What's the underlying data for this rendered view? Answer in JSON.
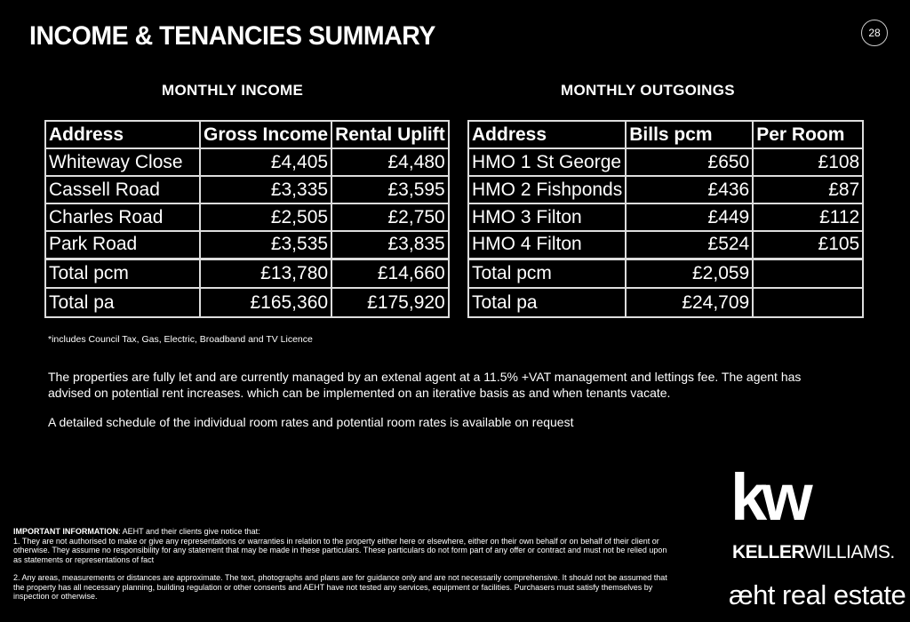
{
  "title": "INCOME & TENANCIES SUMMARY",
  "page_number": "28",
  "income": {
    "heading": "MONTHLY INCOME",
    "headers": [
      "Address",
      "Gross Income",
      "Rental Uplift"
    ],
    "rows": [
      [
        "Whiteway Close",
        "£4,405",
        "£4,480"
      ],
      [
        "Cassell Road",
        "£3,335",
        "£3,595"
      ],
      [
        "Charles Road",
        "£2,505",
        "£2,750"
      ],
      [
        "Park Road",
        "£3,535",
        "£3,835"
      ]
    ],
    "totals": [
      [
        "Total pcm",
        "£13,780",
        "£14,660"
      ],
      [
        "Total pa",
        "£165,360",
        "£175,920"
      ]
    ]
  },
  "outgoings": {
    "heading": "MONTHLY OUTGOINGS",
    "headers": [
      "Address",
      "Bills pcm",
      "Per Room"
    ],
    "rows": [
      [
        "HMO 1 St George",
        "£650",
        "£108"
      ],
      [
        "HMO 2 Fishponds",
        "£436",
        "£87"
      ],
      [
        "HMO 3 Filton",
        "£449",
        "£112"
      ],
      [
        "HMO 4 Filton",
        "£524",
        "£105"
      ]
    ],
    "totals": [
      [
        "Total pcm",
        "£2,059",
        ""
      ],
      [
        "Total pa",
        "£24,709",
        ""
      ]
    ]
  },
  "footnote": "*includes Council Tax, Gas, Electric, Broadband and TV Licence",
  "paragraph1": "The properties are fully let and are currently managed by an extenal agent at a 11.5% +VAT management and lettings fee. The agent has advised on potential rent increases. which can be implemented on an iterative basis as and when tenants vacate.",
  "paragraph2": "A detailed schedule of the individual room rates and potential room rates is available on request",
  "legal": {
    "heading": "IMPORTANT INFORMATION",
    "intro": ": AEHT and their clients give notice that:",
    "p1": "1. They are not authorised to make or give any representations or warranties in relation to the property either here or elsewhere, either on their own behalf or on behalf of their client or otherwise. They assume no responsibility for any statement that may be made in these particulars. These particulars do not form part of any offer or contract and must not be relied upon as statements or representations of fact",
    "p2": "2. Any areas, measurements or distances are approximate. The text, photographs and plans are for guidance only and are not necessarily comprehensive. It should not be assumed that the property has all necessary planning, building regulation or other consents and AEHT have not tested any services, equipment or facilities. Purchasers must satisfy themselves by inspection or otherwise."
  },
  "logo": {
    "kw": "kw",
    "keller": "KELLER",
    "williams": "WILLIAMS.",
    "aeht": "æht real estate"
  }
}
